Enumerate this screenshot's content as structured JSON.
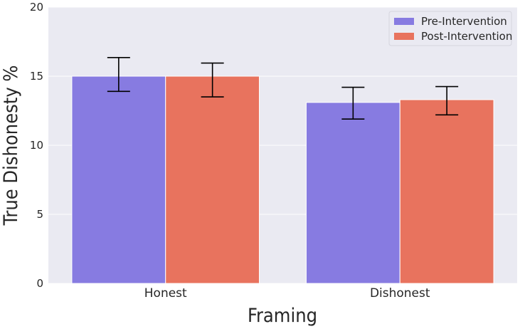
{
  "chart_data": {
    "type": "bar",
    "categories": [
      "Honest",
      "Dishonest"
    ],
    "series": [
      {
        "name": "Pre-Intervention",
        "color": "#877be1",
        "values": [
          15.0,
          13.1
        ],
        "err_low": [
          13.9,
          11.9
        ],
        "err_high": [
          16.35,
          14.2
        ]
      },
      {
        "name": "Post-Intervention",
        "color": "#e8735e",
        "values": [
          15.0,
          13.3
        ],
        "err_low": [
          13.5,
          12.2
        ],
        "err_high": [
          15.95,
          14.25
        ]
      }
    ],
    "xlabel": "Framing",
    "ylabel": "True Dishonesty %",
    "ylim": [
      0,
      20
    ],
    "yticks": [
      "0",
      "5",
      "10",
      "15",
      "20"
    ],
    "grid": true,
    "legend_position": "top-right",
    "background_color": "#eaeaf2"
  }
}
